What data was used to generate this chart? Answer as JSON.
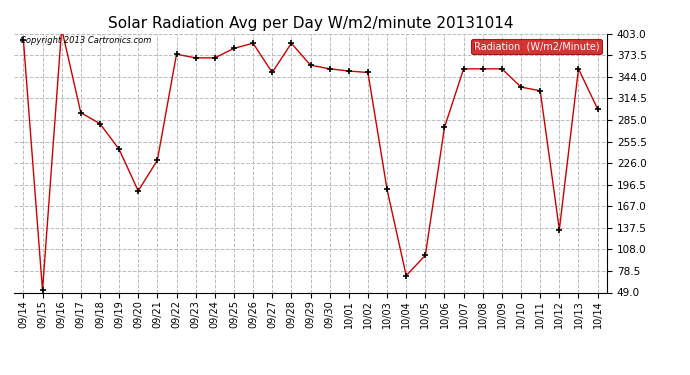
{
  "title": "Solar Radiation Avg per Day W/m2/minute 20131014",
  "copyright_text": "Copyright 2013 Cartronics.com",
  "legend_label": "Radiation  (W/m2/Minute)",
  "dates": [
    "09/14",
    "09/15",
    "09/16",
    "09/17",
    "09/18",
    "09/19",
    "09/20",
    "09/21",
    "09/22",
    "09/23",
    "09/24",
    "09/25",
    "09/26",
    "09/27",
    "09/28",
    "09/29",
    "09/30",
    "10/01",
    "10/02",
    "10/03",
    "10/04",
    "10/05",
    "10/06",
    "10/07",
    "10/08",
    "10/09",
    "10/10",
    "10/11",
    "10/12",
    "10/13",
    "10/14"
  ],
  "values": [
    395,
    52,
    410,
    295,
    280,
    245,
    188,
    230,
    375,
    370,
    370,
    383,
    390,
    350,
    390,
    360,
    355,
    352,
    350,
    190,
    72,
    100,
    275,
    355,
    355,
    355,
    330,
    325,
    135,
    355,
    300
  ],
  "line_color": "#cc0000",
  "marker_color": "#000000",
  "background_color": "#ffffff",
  "plot_bg_color": "#ffffff",
  "grid_color": "#bbbbbb",
  "ylim": [
    49.0,
    403.0
  ],
  "yticks": [
    49.0,
    78.5,
    108.0,
    137.5,
    167.0,
    196.5,
    226.0,
    255.5,
    285.0,
    314.5,
    344.0,
    373.5,
    403.0
  ],
  "title_fontsize": 11,
  "legend_bg": "#cc0000",
  "legend_text_color": "#ffffff",
  "tick_fontsize": 7.5,
  "xtick_fontsize": 7
}
